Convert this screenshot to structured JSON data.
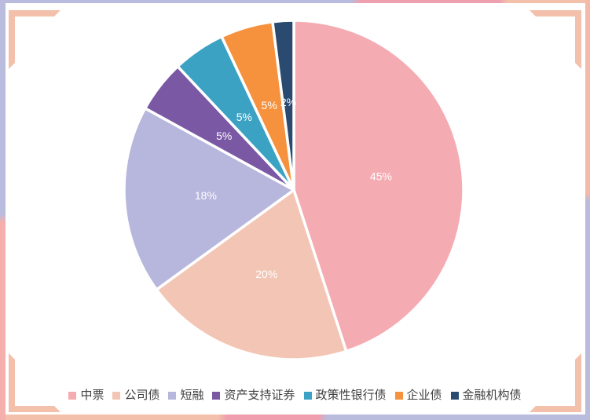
{
  "frame": {
    "lavender": "#b9bcdd",
    "salmon": "#f3c0ab",
    "pink_accent": "#ef9fae"
  },
  "chart_data": {
    "type": "pie",
    "title": "",
    "categories": [
      "中票",
      "公司债",
      "短融",
      "资产支持证券",
      "政策性银行债",
      "企业债",
      "金融机构债"
    ],
    "values": [
      45,
      20,
      18,
      5,
      5,
      5,
      2
    ],
    "percent_labels": [
      "45%",
      "20%",
      "18%",
      "5%",
      "5%",
      "5%",
      "2%"
    ],
    "colors": [
      "#f5abb2",
      "#f3c5b4",
      "#b7b6dd",
      "#7a58a4",
      "#3ca2c4",
      "#f6923d",
      "#2b4a70"
    ],
    "start_angle_deg": 0,
    "direction": "clockwise",
    "slice_separator_color": "#ffffff",
    "data_label_color": "#ffffff",
    "legend_position": "bottom",
    "legend_text_color": "#3f3f3f"
  }
}
